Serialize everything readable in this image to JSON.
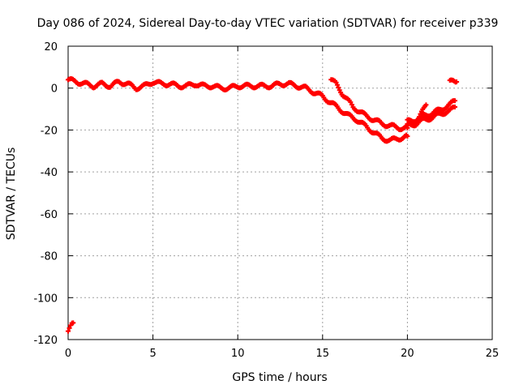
{
  "chart_data": {
    "type": "scatter",
    "title": "Day 086 of 2024, Sidereal Day-to-day VTEC variation (SDTVAR) for receiver p339",
    "xlabel": "GPS time / hours",
    "ylabel": "SDTVAR / TECUs",
    "xlim": [
      0,
      25
    ],
    "ylim": [
      -120,
      20
    ],
    "xticks": [
      0,
      5,
      10,
      15,
      20,
      25
    ],
    "yticks": [
      -120,
      -100,
      -80,
      -60,
      -40,
      -20,
      0,
      20
    ],
    "xtick_labels": [
      "0",
      "5",
      "10",
      "15",
      "20",
      "25"
    ],
    "ytick_labels": [
      "-120",
      "-100",
      "-80",
      "-60",
      "-40",
      "-20",
      "0",
      "20"
    ],
    "grid": true,
    "marker_color": "#ff0000",
    "series": [
      {
        "name": "main",
        "x": [
          0.0,
          0.5,
          1.0,
          1.5,
          2.0,
          2.5,
          3.0,
          3.5,
          4.0,
          4.5,
          5.0,
          5.5,
          6.0,
          6.5,
          7.0,
          7.5,
          8.0,
          8.5,
          9.0,
          9.5,
          10.0,
          10.5,
          11.0,
          11.5,
          12.0,
          12.5,
          13.0,
          13.5,
          14.0,
          14.5,
          15.0,
          15.5,
          16.0,
          16.5,
          17.0,
          17.5,
          18.0,
          18.5,
          19.0,
          19.5,
          20.0
        ],
        "y": [
          4,
          3,
          2,
          1,
          2,
          1,
          3,
          2,
          0,
          1,
          3,
          2,
          2,
          1,
          1,
          2,
          1,
          1,
          0,
          0,
          1,
          1,
          1,
          1,
          1,
          2,
          2,
          1,
          0,
          -2,
          -4,
          -7,
          -10,
          -13,
          -15,
          -18,
          -21,
          -24,
          -25,
          -24,
          -23
        ]
      },
      {
        "name": "upper",
        "x": [
          15.5,
          15.8,
          16.2,
          16.8,
          17.5,
          18.5,
          19.5,
          20.0
        ],
        "y": [
          4,
          2,
          -3,
          -9,
          -13,
          -17,
          -19,
          -19
        ]
      },
      {
        "name": "late",
        "x": [
          20.0,
          20.5,
          21.0,
          21.5,
          22.0,
          22.5,
          22.8
        ],
        "y": [
          -16,
          -15,
          -13,
          -12,
          -10,
          -8,
          -6
        ]
      },
      {
        "name": "late-lower",
        "x": [
          20.0,
          20.5,
          21.0,
          21.5,
          22.0,
          22.5,
          22.8
        ],
        "y": [
          -18,
          -17,
          -15,
          -14,
          -12,
          -11,
          -9
        ]
      },
      {
        "name": "late-upper",
        "x": [
          20.7,
          20.9,
          21.1
        ],
        "y": [
          -14,
          -11,
          -8
        ]
      },
      {
        "name": "late-point",
        "x": [
          22.5,
          22.7,
          22.9
        ],
        "y": [
          3,
          3,
          3
        ]
      },
      {
        "name": "start",
        "x": [
          0.0,
          0.15,
          0.3
        ],
        "y": [
          -116,
          -114,
          -112
        ]
      }
    ]
  }
}
